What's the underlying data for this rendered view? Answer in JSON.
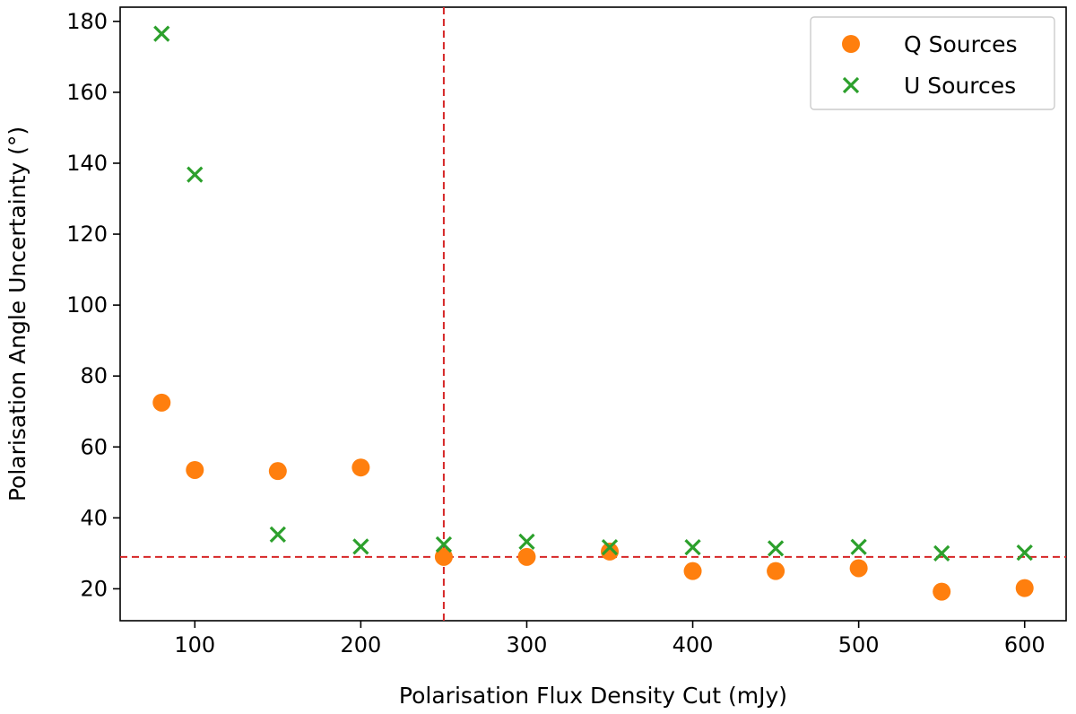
{
  "chart_data": {
    "type": "scatter",
    "title": "",
    "xlabel": "Polarisation Flux Density Cut (mJy)",
    "ylabel": "Polarisation Angle Uncertainty (°)",
    "xlim": [
      55,
      625
    ],
    "ylim": [
      11,
      184
    ],
    "xticks": [
      100,
      200,
      300,
      400,
      500,
      600
    ],
    "yticks": [
      20,
      40,
      60,
      80,
      100,
      120,
      140,
      160,
      180
    ],
    "grid": false,
    "legend_position": "top-right",
    "series": [
      {
        "name": "Q Sources",
        "marker": "circle",
        "color": "#ff7f0e",
        "x": [
          80,
          100,
          150,
          200,
          250,
          300,
          350,
          400,
          450,
          500,
          550,
          600
        ],
        "y": [
          72.5,
          53.5,
          53.2,
          54.2,
          29.0,
          29.0,
          30.5,
          25.0,
          25.0,
          25.8,
          19.2,
          20.2
        ]
      },
      {
        "name": "U Sources",
        "marker": "x",
        "color": "#2ca02c",
        "x": [
          80,
          100,
          150,
          200,
          250,
          300,
          350,
          400,
          450,
          500,
          550,
          600
        ],
        "y": [
          176.5,
          136.8,
          35.3,
          31.9,
          32.5,
          33.3,
          31.7,
          31.7,
          31.4,
          31.8,
          30.0,
          30.2
        ]
      }
    ],
    "reference_lines": [
      {
        "orientation": "vertical",
        "value": 250,
        "color": "#d62728",
        "style": "dashed"
      },
      {
        "orientation": "horizontal",
        "value": 29,
        "color": "#d62728",
        "style": "dashed"
      }
    ]
  }
}
